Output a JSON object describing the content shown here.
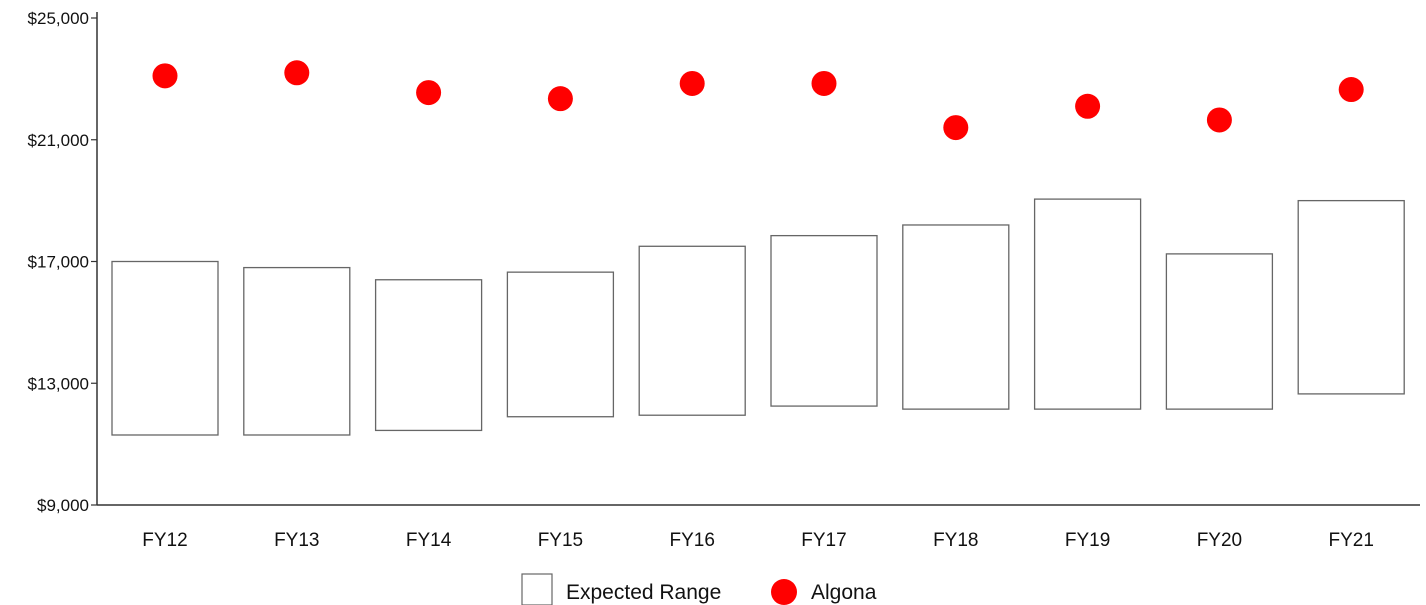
{
  "chart_data": {
    "type": "box-range-with-points",
    "title": "",
    "xlabel": "",
    "ylabel": "",
    "categories": [
      "FY12",
      "FY13",
      "FY14",
      "FY15",
      "FY16",
      "FY17",
      "FY18",
      "FY19",
      "FY20",
      "FY21"
    ],
    "y_ticks": [
      "$9,000",
      "$13,000",
      "$17,000",
      "$21,000",
      "$25,000"
    ],
    "y_tick_values": [
      9000,
      13000,
      17000,
      21000,
      25000
    ],
    "ylim": [
      9000,
      25000
    ],
    "grid": false,
    "series": [
      {
        "name": "Expected Range",
        "kind": "range",
        "low": [
          11300,
          11300,
          11450,
          11900,
          11950,
          12250,
          12150,
          12150,
          12150,
          12650
        ],
        "high": [
          17000,
          16800,
          16400,
          16650,
          17500,
          17850,
          18200,
          19050,
          17250,
          19000
        ],
        "color": "#ffffff",
        "stroke": "#666666"
      },
      {
        "name": "Algona",
        "kind": "points",
        "values": [
          23100,
          23200,
          22550,
          22350,
          22850,
          22850,
          21400,
          22100,
          21650,
          22650
        ],
        "color": "#ff0000"
      }
    ],
    "legend": {
      "position": "bottom"
    }
  }
}
